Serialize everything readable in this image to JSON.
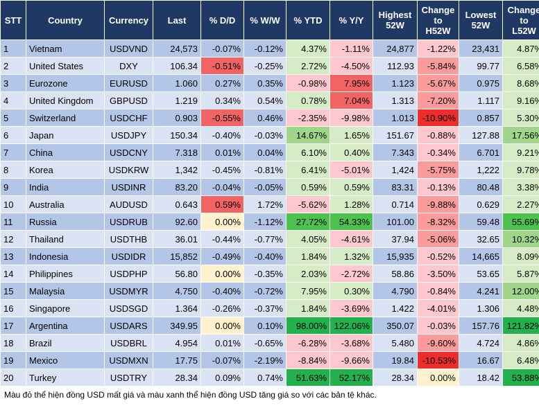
{
  "headers": [
    [
      "STT"
    ],
    [
      "Country"
    ],
    [
      "Currency"
    ],
    [
      "Last"
    ],
    [
      "% D/D"
    ],
    [
      "% W/W"
    ],
    [
      "% YTD"
    ],
    [
      "% Y/Y"
    ],
    [
      "Highest",
      "52W"
    ],
    [
      "Change",
      "to",
      "H52W"
    ],
    [
      "Lowest",
      "52W"
    ],
    [
      "Change",
      "to",
      "L52W"
    ]
  ],
  "colors": {
    "header_bg": "#1f3864",
    "row_odd": "#b4c6e7",
    "row_even": "#dae3f3",
    "down_light": "#ffc7ce",
    "down_mid": "#fc9b9b",
    "down_strong": "#f26363",
    "down_deep": "#ee2c2c",
    "up_light": "#d6ecc7",
    "up_mid": "#9fd68a",
    "up_strong": "#4ec24e",
    "up_deep": "#22b14c",
    "neutral": "#fff2cc"
  },
  "rows": [
    {
      "stt": "1",
      "country": "Vietnam",
      "currency": "USDVND",
      "last": "24,573",
      "dd": "-0.07%",
      "ww": "-0.12%",
      "ytd": "4.37%",
      "yy": "-1.11%",
      "high52": "24,877",
      "chg_h52": "-1.22%",
      "low52": "23,431",
      "chg_l52": "4.87%"
    },
    {
      "stt": "2",
      "country": "United States",
      "currency": "DXY",
      "last": "106.34",
      "dd": "-0.51%",
      "ww": "-0.25%",
      "ytd": "2.72%",
      "yy": "-4.50%",
      "high52": "112.93",
      "chg_h52": "-5.84%",
      "low52": "99.77",
      "chg_l52": "6.58%"
    },
    {
      "stt": "3",
      "country": "Eurozone",
      "currency": "EURUSD",
      "last": "1.060",
      "dd": "0.27%",
      "ww": "0.35%",
      "ytd": "-0.98%",
      "yy": "7.95%",
      "high52": "1.123",
      "chg_h52": "-5.67%",
      "low52": "0.975",
      "chg_l52": "8.68%"
    },
    {
      "stt": "4",
      "country": "United Kingdom",
      "currency": "GBPUSD",
      "last": "1.219",
      "dd": "0.34%",
      "ww": "0.54%",
      "ytd": "0.78%",
      "yy": "7.04%",
      "high52": "1.313",
      "chg_h52": "-7.20%",
      "low52": "1.117",
      "chg_l52": "9.16%"
    },
    {
      "stt": "5",
      "country": "Switzerland",
      "currency": "USDCHF",
      "last": "0.903",
      "dd": "-0.55%",
      "ww": "0.46%",
      "ytd": "-2.35%",
      "yy": "-9.98%",
      "high52": "1.013",
      "chg_h52": "-10.90%",
      "low52": "0.857",
      "chg_l52": "5.30%"
    },
    {
      "stt": "6",
      "country": "Japan",
      "currency": "USDJPY",
      "last": "150.34",
      "dd": "-0.40%",
      "ww": "-0.03%",
      "ytd": "14.67%",
      "yy": "1.65%",
      "high52": "151.67",
      "chg_h52": "-0.88%",
      "low52": "127.88",
      "chg_l52": "17.56%"
    },
    {
      "stt": "7",
      "country": "China",
      "currency": "USDCNY",
      "last": "7.318",
      "dd": "0.01%",
      "ww": "0.04%",
      "ytd": "6.10%",
      "yy": "0.40%",
      "high52": "7.343",
      "chg_h52": "-0.34%",
      "low52": "6.701",
      "chg_l52": "9.21%"
    },
    {
      "stt": "8",
      "country": "Korea",
      "currency": "USDKRW",
      "last": "1,342",
      "dd": "-0.45%",
      "ww": "-0.81%",
      "ytd": "6.41%",
      "yy": "-5.01%",
      "high52": "1,424",
      "chg_h52": "-5.75%",
      "low52": "1,222",
      "chg_l52": "9.78%"
    },
    {
      "stt": "9",
      "country": "India",
      "currency": "USDINR",
      "last": "83.20",
      "dd": "-0.04%",
      "ww": "-0.05%",
      "ytd": "0.59%",
      "yy": "0.59%",
      "high52": "83.31",
      "chg_h52": "-0.13%",
      "low52": "80.48",
      "chg_l52": "3.38%"
    },
    {
      "stt": "10",
      "country": "Australia",
      "currency": "AUDUSD",
      "last": "0.643",
      "dd": "0.59%",
      "ww": "1.72%",
      "ytd": "-5.62%",
      "yy": "1.28%",
      "high52": "0.714",
      "chg_h52": "-9.88%",
      "low52": "0.629",
      "chg_l52": "2.27%"
    },
    {
      "stt": "11",
      "country": "Russia",
      "currency": "USDRUB",
      "last": "92.60",
      "dd": "0.00%",
      "ww": "-1.12%",
      "ytd": "27.72%",
      "yy": "54.33%",
      "high52": "101.00",
      "chg_h52": "-8.32%",
      "low52": "59.48",
      "chg_l52": "55.69%"
    },
    {
      "stt": "12",
      "country": "Thailand",
      "currency": "USDTHB",
      "last": "36.01",
      "dd": "-0.44%",
      "ww": "-0.77%",
      "ytd": "4.05%",
      "yy": "-4.61%",
      "high52": "37.94",
      "chg_h52": "-5.06%",
      "low52": "32.65",
      "chg_l52": "10.32%"
    },
    {
      "stt": "13",
      "country": "Indonesia",
      "currency": "USDIDR",
      "last": "15,852",
      "dd": "-0.49%",
      "ww": "-0.40%",
      "ytd": "1.84%",
      "yy": "1.32%",
      "high52": "15,935",
      "chg_h52": "-0.52%",
      "low52": "14,665",
      "chg_l52": "8.09%"
    },
    {
      "stt": "14",
      "country": "Philippines",
      "currency": "USDPHP",
      "last": "56.80",
      "dd": "0.00%",
      "ww": "-0.35%",
      "ytd": "2.03%",
      "yy": "-2.72%",
      "high52": "58.86",
      "chg_h52": "-3.50%",
      "low52": "53.65",
      "chg_l52": "5.87%"
    },
    {
      "stt": "15",
      "country": "Malaysia",
      "currency": "USDMYR",
      "last": "4.750",
      "dd": "-0.40%",
      "ww": "-0.72%",
      "ytd": "7.95%",
      "yy": "0.30%",
      "high52": "4.790",
      "chg_h52": "-0.84%",
      "low52": "4.241",
      "chg_l52": "12.00%"
    },
    {
      "stt": "16",
      "country": "Singapore",
      "currency": "USDSGD",
      "last": "1.364",
      "dd": "-0.26%",
      "ww": "-0.37%",
      "ytd": "1.84%",
      "yy": "-3.69%",
      "high52": "1.422",
      "chg_h52": "-4.01%",
      "low52": "1.306",
      "chg_l52": "4.48%"
    },
    {
      "stt": "17",
      "country": "Argentina",
      "currency": "USDARS",
      "last": "349.95",
      "dd": "0.00%",
      "ww": "0.10%",
      "ytd": "98.00%",
      "yy": "122.06%",
      "high52": "350.07",
      "chg_h52": "-0.03%",
      "low52": "157.76",
      "chg_l52": "121.82%"
    },
    {
      "stt": "18",
      "country": "Brazil",
      "currency": "USDBRL",
      "last": "4.954",
      "dd": "0.01%",
      "ww": "-0.65%",
      "ytd": "-6.28%",
      "yy": "-3.68%",
      "high52": "5.480",
      "chg_h52": "-9.60%",
      "low52": "4.724",
      "chg_l52": "4.86%"
    },
    {
      "stt": "19",
      "country": "Mexico",
      "currency": "USDMXN",
      "last": "17.75",
      "dd": "-0.07%",
      "ww": "-2.19%",
      "ytd": "-8.84%",
      "yy": "-9.66%",
      "high52": "19.84",
      "chg_h52": "-10.53%",
      "low52": "16.67",
      "chg_l52": "6.48%"
    },
    {
      "stt": "20",
      "country": "Turkey",
      "currency": "USDTRY",
      "last": "28.34",
      "dd": "0.09%",
      "ww": "0.74%",
      "ytd": "51.63%",
      "yy": "52.17%",
      "high52": "28.34",
      "chg_h52": "0.00%",
      "low52": "18.42",
      "chg_l52": "53.88%"
    }
  ],
  "cell_colors": {
    "dd": [
      "",
      "down_strong",
      "",
      "",
      "down_strong",
      "",
      "",
      "",
      "",
      "down_strong",
      "neutral",
      "",
      "",
      "neutral",
      "",
      "",
      "neutral",
      "",
      "",
      ""
    ],
    "ww": [
      "",
      "",
      "",
      "",
      "",
      "",
      "",
      "",
      "",
      "",
      "",
      "",
      "",
      "",
      "",
      "",
      "",
      "",
      "",
      ""
    ],
    "ytd": [
      "up_light",
      "up_light",
      "down_light",
      "up_light",
      "down_light",
      "up_mid",
      "up_light",
      "up_light",
      "up_light",
      "down_light",
      "up_strong",
      "up_light",
      "up_light",
      "up_light",
      "up_light",
      "up_light",
      "up_deep",
      "down_light",
      "down_light",
      "up_deep"
    ],
    "yy": [
      "down_light",
      "down_light",
      "down_strong",
      "down_strong",
      "down_light",
      "up_light",
      "up_light",
      "down_light",
      "up_light",
      "up_light",
      "up_strong",
      "down_light",
      "up_light",
      "down_light",
      "up_light",
      "down_light",
      "up_deep",
      "down_light",
      "down_light",
      "up_deep"
    ],
    "chg_h52": [
      "down_light",
      "down_mid",
      "down_mid",
      "down_mid",
      "down_deep",
      "down_light",
      "down_light",
      "down_mid",
      "down_light",
      "down_mid",
      "down_mid",
      "down_mid",
      "down_light",
      "down_light",
      "down_light",
      "down_light",
      "down_light",
      "down_mid",
      "down_deep",
      "neutral"
    ],
    "chg_l52": [
      "up_light",
      "up_light",
      "up_light",
      "up_light",
      "up_light",
      "up_mid",
      "up_light",
      "up_light",
      "up_light",
      "up_light",
      "up_strong",
      "up_mid",
      "up_light",
      "up_light",
      "up_mid",
      "up_light",
      "up_deep",
      "up_light",
      "up_light",
      "up_deep"
    ]
  },
  "footnote": "Màu đỏ thể hiện đồng USD mất giá và màu xanh thể hiện đồng USD tăng giá so với các bản tệ khác."
}
